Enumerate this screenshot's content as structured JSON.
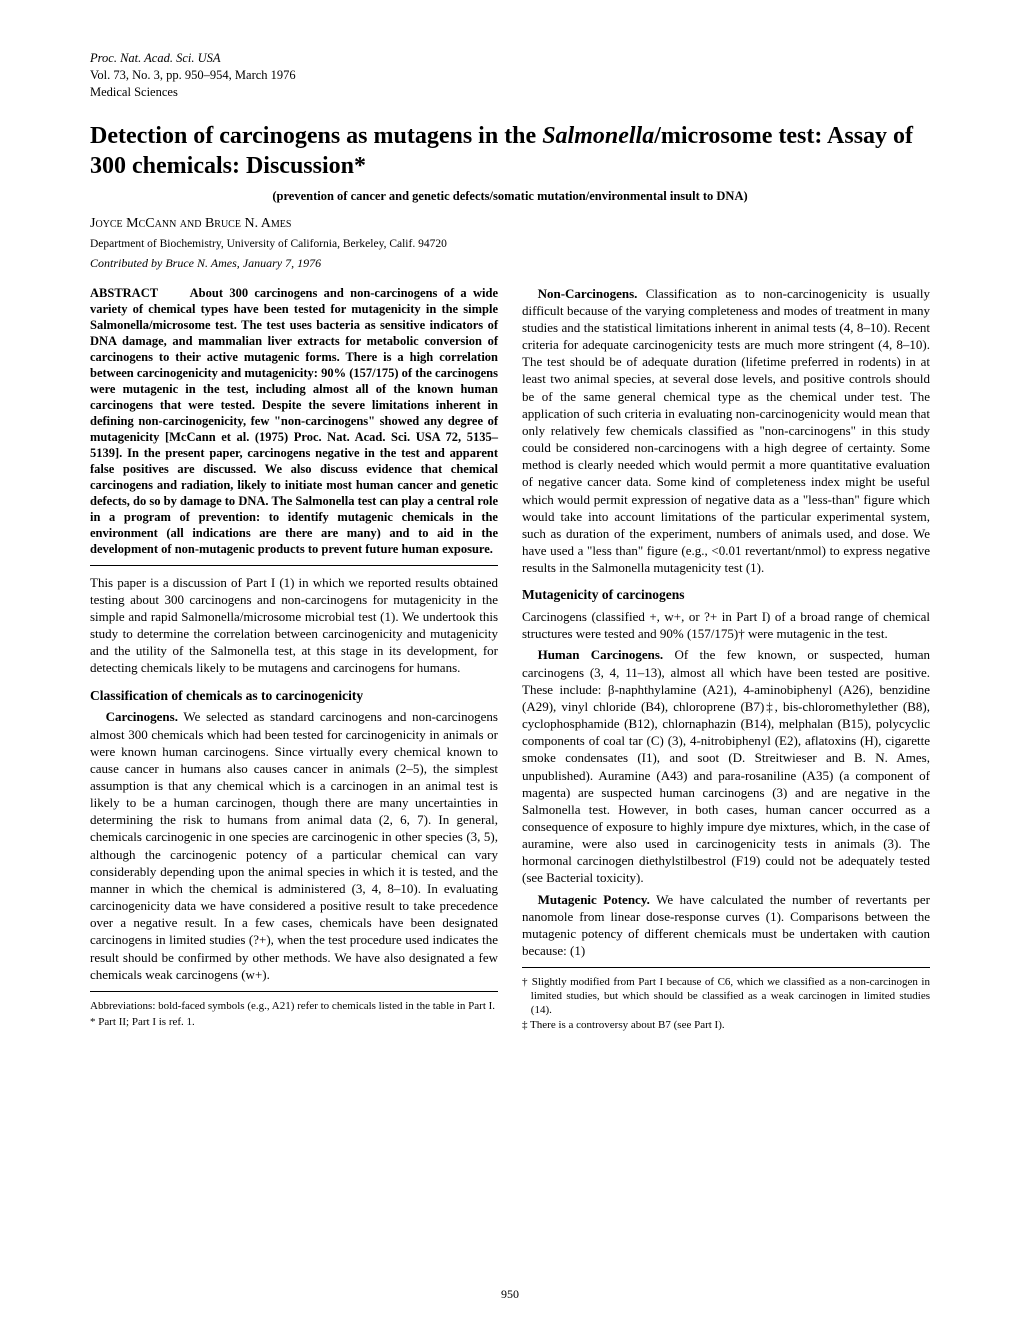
{
  "header": {
    "line1": "Proc. Nat. Acad. Sci. USA",
    "line2": "Vol. 73, No. 3, pp. 950–954, March 1976",
    "line3": "Medical Sciences"
  },
  "title_plain_before": "Detection of carcinogens as mutagens in the ",
  "title_genus": "Salmonella",
  "title_plain_after": "/microsome test: Assay of 300 chemicals: Discussion*",
  "subtitle": "(prevention of cancer and genetic defects/somatic mutation/environmental insult to DNA)",
  "authors": "Joyce McCann and Bruce N. Ames",
  "affiliation": "Department of Biochemistry, University of California, Berkeley, Calif. 94720",
  "contributed": "Contributed by Bruce N. Ames, January 7, 1976",
  "abstract_label": "ABSTRACT",
  "abstract_body": "About 300 carcinogens and non-carcinogens of a wide variety of chemical types have been tested for mutagenicity in the simple Salmonella/microsome test. The test uses bacteria as sensitive indicators of DNA damage, and mammalian liver extracts for metabolic conversion of carcinogens to their active mutagenic forms. There is a high correlation between carcinogenicity and mutagenicity: 90% (157/175) of the carcinogens were mutagenic in the test, including almost all of the known human carcinogens that were tested. Despite the severe limitations inherent in defining non-carcinogenicity, few \"non-carcinogens\" showed any degree of mutagenicity [McCann et al. (1975) Proc. Nat. Acad. Sci. USA 72, 5135–5139]. In the present paper, carcinogens negative in the test and apparent false positives are discussed. We also discuss evidence that chemical carcinogens and radiation, likely to initiate most human cancer and genetic defects, do so by damage to DNA. The Salmonella test can play a central role in a program of prevention: to identify mutagenic chemicals in the environment (all indications are there are many) and to aid in the development of non-mutagenic products to prevent future human exposure.",
  "intro_para": "This paper is a discussion of Part I (1) in which we reported results obtained testing about 300 carcinogens and non-carcinogens for mutagenicity in the simple and rapid Salmonella/microsome microbial test (1). We undertook this study to determine the correlation between carcinogenicity and mutagenicity and the utility of the Salmonella test, at this stage in its development, for detecting chemicals likely to be mutagens and carcinogens for humans.",
  "sec1_title": "Classification of chemicals as to carcinogenicity",
  "carcinogens_run": "Carcinogens.",
  "carcinogens_text": " We selected as standard carcinogens and non-carcinogens almost 300 chemicals which had been tested for carcinogenicity in animals or were known human carcinogens. Since virtually every chemical known to cause cancer in humans also causes cancer in animals (2–5), the simplest assumption is that any chemical which is a carcinogen in an animal test is likely to be a human carcinogen, though there are many uncertainties in determining the risk to humans from animal data (2, 6, 7). In general, chemicals carcinogenic in one species are carcinogenic in other species (3, 5), although the carcinogenic potency of a particular chemical can vary considerably depending upon the animal species in which it is tested, and the manner in which the chemical is administered (3, 4, 8–10). In evaluating carcinogenicity data we have considered a positive result to take precedence over a negative result. In a few cases, chemicals have been designated carcinogens in limited studies (?+), when the test procedure used indicates the result should be confirmed by other methods. We have also designated a few chemicals weak carcinogens (w+).",
  "noncarc_run": "Non-Carcinogens.",
  "noncarc_text": " Classification as to non-carcinogenicity is usually difficult because of the varying completeness and modes of treatment in many studies and the statistical limitations inherent in animal tests (4, 8–10). Recent criteria for adequate carcinogenicity tests are much more stringent (4, 8–10). The test should be of adequate duration (lifetime preferred in rodents) in at least two animal species, at several dose levels, and positive controls should be of the same general chemical type as the chemical under test. The application of such criteria in evaluating non-carcinogenicity would mean that only relatively few chemicals classified as \"non-carcinogens\" in this study could be considered non-carcinogens with a high degree of certainty. Some method is clearly needed which would permit a more quantitative evaluation of negative cancer data. Some kind of completeness index might be useful which would permit expression of negative data as a \"less-than\" figure which would take into account limitations of the particular experimental system, such as duration of the experiment, numbers of animals used, and dose. We have used a \"less than\" figure (e.g., <0.01 revertant/nmol) to express negative results in the Salmonella mutagenicity test (1).",
  "sec2_title": "Mutagenicity of carcinogens",
  "sec2_intro": "Carcinogens (classified +, w+, or ?+ in Part I) of a broad range of chemical structures were tested and 90% (157/175)† were mutagenic in the test.",
  "human_run": "Human Carcinogens.",
  "human_text": " Of the few known, or suspected, human carcinogens (3, 4, 11–13), almost all which have been tested are positive. These include: β-naphthylamine (A21), 4-aminobiphenyl (A26), benzidine (A29), vinyl chloride (B4), chloroprene (B7)‡, bis-chloromethylether (B8), cyclophosphamide (B12), chlornaphazin (B14), melphalan (B15), polycyclic components of coal tar (C) (3), 4-nitrobiphenyl (E2), aflatoxins (H), cigarette smoke condensates (I1), and soot (D. Streitwieser and B. N. Ames, unpublished). Auramine (A43) and para-rosaniline (A35) (a component of magenta) are suspected human carcinogens (3) and are negative in the Salmonella test. However, in both cases, human cancer occurred as a consequence of exposure to highly impure dye mixtures, which, in the case of auramine, were also used in carcinogenicity tests in animals (3). The hormonal carcinogen diethylstilbestrol (F19) could not be adequately tested (see Bacterial toxicity).",
  "mutpot_run": "Mutagenic Potency.",
  "mutpot_text": " We have calculated the number of revertants per nanomole from linear dose-response curves (1). Comparisons between the mutagenic potency of different chemicals must be undertaken with caution because: (1)",
  "foot_abbrev": "Abbreviations: bold-faced symbols (e.g., A21) refer to chemicals listed in the table in Part I.",
  "foot_star": "* Part II; Part I is ref. 1.",
  "foot_dagger": "† Slightly modified from Part I because of C6, which we classified as a non-carcinogen in limited studies, but which should be classified as a weak carcinogen in limited studies (14).",
  "foot_ddagger": "‡ There is a controversy about B7 (see Part I).",
  "page_number": "950"
}
